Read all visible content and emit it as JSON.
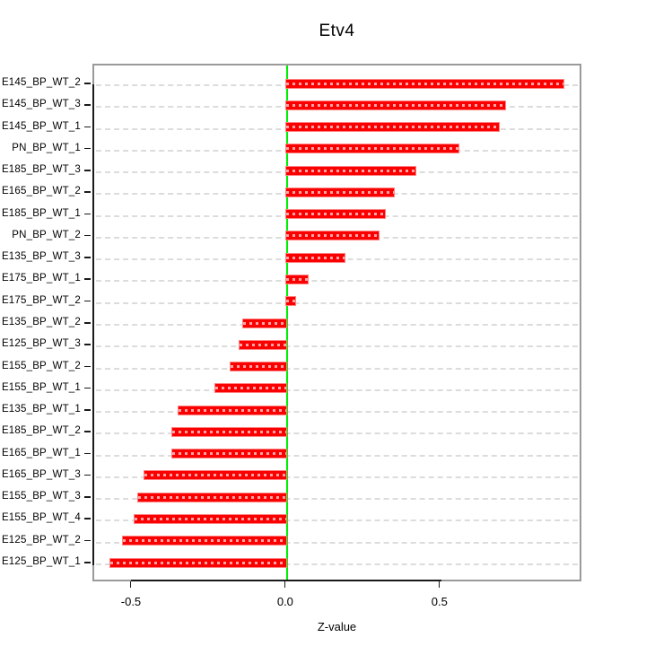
{
  "title": "Etv4",
  "xlabel": "Z-value",
  "colors": {
    "bar": "#fb0000",
    "bar_border": "#ff8080",
    "zero_line": "#00ee00",
    "box_border": "#9a9a9a",
    "gridline": "#dcdcdc",
    "axis": "#1a1a1a"
  },
  "chart_data": {
    "type": "bar",
    "orientation": "horizontal",
    "title": "Etv4",
    "xlabel": "Z-value",
    "ylabel": "",
    "grid": true,
    "legend": false,
    "xlim": [
      -0.625,
      0.96
    ],
    "x_ticks": [
      -0.5,
      0.0,
      0.5
    ],
    "x_tick_labels": [
      "-0.5",
      "0.0",
      "0.5"
    ],
    "zero_reference_line": 0.0,
    "categories": [
      "E145_BP_WT_2",
      "E145_BP_WT_3",
      "E145_BP_WT_1",
      "PN_BP_WT_1",
      "E185_BP_WT_3",
      "E165_BP_WT_2",
      "E185_BP_WT_1",
      "PN_BP_WT_2",
      "E135_BP_WT_3",
      "E175_BP_WT_1",
      "E175_BP_WT_2",
      "E135_BP_WT_2",
      "E125_BP_WT_3",
      "E155_BP_WT_2",
      "E155_BP_WT_1",
      "E135_BP_WT_1",
      "E185_BP_WT_2",
      "E165_BP_WT_1",
      "E165_BP_WT_3",
      "E155_BP_WT_3",
      "E155_BP_WT_4",
      "E125_BP_WT_2",
      "E125_BP_WT_1"
    ],
    "values": [
      0.9,
      0.71,
      0.69,
      0.56,
      0.42,
      0.35,
      0.32,
      0.3,
      0.19,
      0.07,
      0.03,
      -0.14,
      -0.15,
      -0.18,
      -0.23,
      -0.35,
      -0.37,
      -0.37,
      -0.46,
      -0.48,
      -0.49,
      -0.53,
      -0.57
    ]
  }
}
